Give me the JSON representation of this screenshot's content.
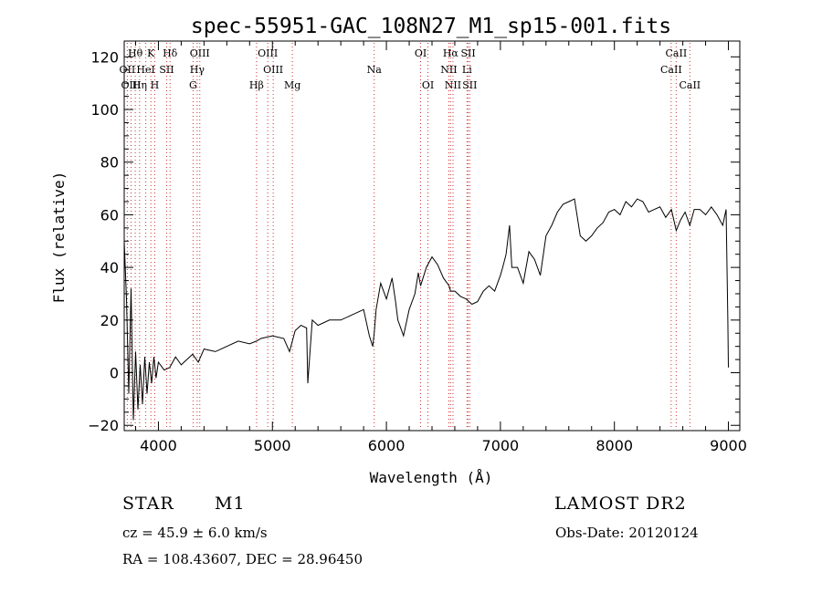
{
  "chart_data": {
    "type": "line",
    "title": "spec-55951-GAC_108N27_M1_sp15-001.fits",
    "xlabel": "Wavelength (Å)",
    "ylabel": "Flux (relative)",
    "xlim": [
      3700,
      9100
    ],
    "ylim": [
      -22,
      126
    ],
    "xticks": [
      4000,
      5000,
      6000,
      7000,
      8000,
      9000
    ],
    "yticks": [
      -20,
      0,
      20,
      40,
      60,
      80,
      100,
      120
    ],
    "grid": false,
    "series": [
      {
        "x": [
          3700,
          3720,
          3740,
          3760,
          3780,
          3800,
          3820,
          3840,
          3860,
          3880,
          3900,
          3920,
          3940,
          3960,
          3980,
          4000,
          4050,
          4100,
          4150,
          4200,
          4250,
          4300,
          4350,
          4400,
          4500,
          4600,
          4700,
          4800,
          4860,
          4900,
          5000,
          5100,
          5150,
          5200,
          5250,
          5300,
          5310,
          5350,
          5400,
          5500,
          5600,
          5700,
          5800,
          5850,
          5880,
          5893,
          5910,
          5950,
          6000,
          6050,
          6080,
          6100,
          6150,
          6200,
          6250,
          6280,
          6300,
          6350,
          6400,
          6450,
          6500,
          6550,
          6563,
          6600,
          6650,
          6700,
          6750,
          6800,
          6850,
          6900,
          6950,
          7000,
          7020,
          7050,
          7080,
          7100,
          7150,
          7200,
          7250,
          7300,
          7350,
          7400,
          7450,
          7500,
          7550,
          7600,
          7650,
          7700,
          7750,
          7800,
          7850,
          7900,
          7950,
          8000,
          8050,
          8100,
          8150,
          8200,
          8250,
          8300,
          8350,
          8400,
          8450,
          8500,
          8542,
          8580,
          8620,
          8662,
          8700,
          8750,
          8800,
          8850,
          8900,
          8950,
          8980,
          8995,
          9000
        ],
        "values": [
          50,
          28,
          -8,
          32,
          -18,
          8,
          -14,
          3,
          -12,
          6,
          -8,
          4,
          -4,
          6,
          -2,
          4,
          1,
          2,
          6,
          3,
          5,
          7,
          4,
          9,
          8,
          10,
          12,
          11,
          12,
          13,
          14,
          13,
          8,
          16,
          18,
          17,
          -4,
          20,
          18,
          20,
          20,
          22,
          24,
          14,
          10,
          15,
          24,
          34,
          28,
          36,
          27,
          20,
          14,
          24,
          30,
          38,
          33,
          40,
          44,
          41,
          36,
          33,
          31,
          31,
          29,
          28,
          26,
          27,
          31,
          33,
          31,
          37,
          40,
          45,
          56,
          40,
          40,
          34,
          46,
          43,
          37,
          52,
          56,
          61,
          64,
          65,
          66,
          52,
          50,
          52,
          55,
          57,
          61,
          62,
          60,
          65,
          63,
          66,
          65,
          61,
          62,
          63,
          59,
          62,
          54,
          58,
          61,
          56,
          62,
          62,
          60,
          63,
          60,
          56,
          62,
          20,
          2
        ]
      }
    ],
    "lines": [
      {
        "label": "Hθ",
        "x": 3797,
        "row": 0
      },
      {
        "label": "K",
        "x": 3934,
        "row": 0
      },
      {
        "label": "Hδ",
        "x": 4102,
        "row": 0
      },
      {
        "label": "OIII",
        "x": 4363,
        "row": 0
      },
      {
        "label": "OIII",
        "x": 4959,
        "row": 0
      },
      {
        "label": "OI",
        "x": 6300,
        "row": 0
      },
      {
        "label": "Hα",
        "x": 6563,
        "row": 0
      },
      {
        "label": "SII",
        "x": 6717,
        "row": 0
      },
      {
        "label": "CaII",
        "x": 8542,
        "row": 0
      },
      {
        "label": "OII",
        "x": 3727,
        "row": 1
      },
      {
        "label": "HeI",
        "x": 3889,
        "row": 1
      },
      {
        "label": "SII",
        "x": 4072,
        "row": 1
      },
      {
        "label": "Hγ",
        "x": 4340,
        "row": 1
      },
      {
        "label": "OIII",
        "x": 5007,
        "row": 1
      },
      {
        "label": "Na",
        "x": 5893,
        "row": 1
      },
      {
        "label": "NII",
        "x": 6548,
        "row": 1
      },
      {
        "label": "Li",
        "x": 6707,
        "row": 1
      },
      {
        "label": "CaII",
        "x": 8498,
        "row": 1
      },
      {
        "label": "OIII",
        "x": 3760,
        "row": 2
      },
      {
        "label": "Hη",
        "x": 3835,
        "row": 2
      },
      {
        "label": "H",
        "x": 3968,
        "row": 2
      },
      {
        "label": "G",
        "x": 4304,
        "row": 2
      },
      {
        "label": "Hβ",
        "x": 4861,
        "row": 2
      },
      {
        "label": "Mg",
        "x": 5175,
        "row": 2
      },
      {
        "label": "OI",
        "x": 6364,
        "row": 2
      },
      {
        "label": "NII",
        "x": 6584,
        "row": 2
      },
      {
        "label": "SII",
        "x": 6731,
        "row": 2
      },
      {
        "label": "CaII",
        "x": 8662,
        "row": 2
      }
    ],
    "colors": {
      "line_markers": "#d03030",
      "spectrum": "#000000"
    }
  },
  "info": {
    "object_class": "STAR",
    "subclass": "M1",
    "survey": "LAMOST DR2",
    "cz": "cz = 45.9 ± 6.0 km/s",
    "obs_date": "Obs-Date: 20120124",
    "coords": "RA = 108.43607, DEC =  28.96450"
  }
}
